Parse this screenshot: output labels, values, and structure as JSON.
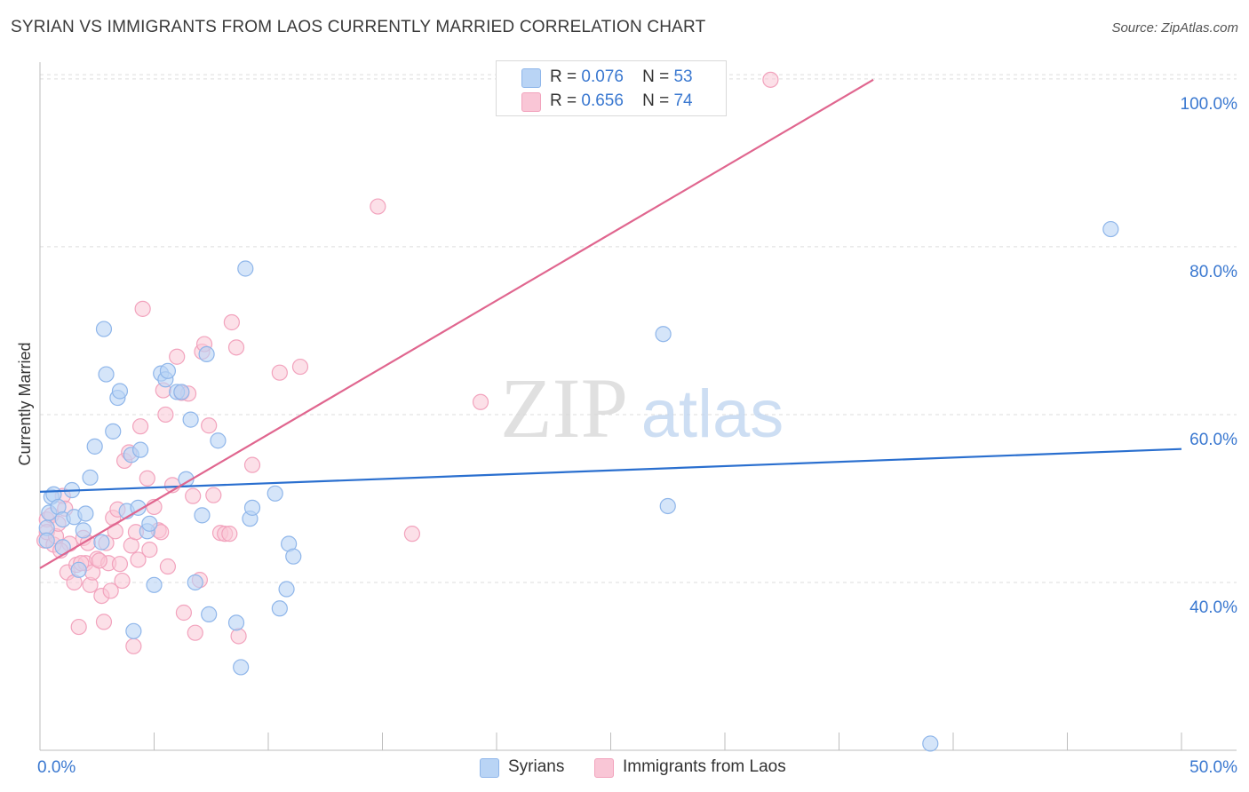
{
  "header": {
    "title": "SYRIAN VS IMMIGRANTS FROM LAOS CURRENTLY MARRIED CORRELATION CHART",
    "source": "Source: ZipAtlas.com"
  },
  "legend": {
    "syrians": {
      "r_label": "R =",
      "r_value": "0.076",
      "n_label": "N =",
      "n_value": "53"
    },
    "laos": {
      "r_label": "R =",
      "r_value": "0.656",
      "n_label": "N =",
      "n_value": "74"
    }
  },
  "bottom_legend": {
    "syrians": "Syrians",
    "laos": "Immigrants from Laos"
  },
  "watermark": {
    "zip": "ZIP",
    "atlas": "atlas"
  },
  "colors": {
    "syrian_fill": "#b9d4f5",
    "syrian_stroke": "#8fb6ea",
    "syrian_line": "#2a6fcf",
    "laos_fill": "#f9c6d6",
    "laos_stroke": "#f2a3bd",
    "laos_line": "#e0668f",
    "axis_text": "#3a78d0",
    "grid": "#dddddd"
  },
  "chart_data": {
    "type": "scatter",
    "title": "SYRIAN VS IMMIGRANTS FROM LAOS CURRENTLY MARRIED CORRELATION CHART",
    "xlabel": "",
    "ylabel": "Currently Married",
    "xlim": [
      0,
      50
    ],
    "ylim": [
      20,
      102
    ],
    "x_tick_labels": [
      {
        "value": 0,
        "label": "0.0%"
      },
      {
        "value": 50,
        "label": "50.0%"
      }
    ],
    "x_tick_marks": [
      0,
      5,
      10,
      15,
      20,
      25,
      30,
      35,
      40,
      45,
      50
    ],
    "y_ticks": [
      {
        "value": 40,
        "label": "40.0%"
      },
      {
        "value": 60,
        "label": "60.0%"
      },
      {
        "value": 80,
        "label": "80.0%"
      },
      {
        "value": 100,
        "label": "100.0%"
      }
    ],
    "series": [
      {
        "name": "Syrians",
        "trend": {
          "x": [
            0,
            50
          ],
          "y": [
            50.8,
            55.9
          ]
        },
        "points": [
          [
            0.3,
            46.5
          ],
          [
            0.3,
            45.0
          ],
          [
            0.4,
            48.3
          ],
          [
            0.5,
            50.2
          ],
          [
            0.6,
            50.5
          ],
          [
            0.8,
            49.0
          ],
          [
            1.0,
            47.5
          ],
          [
            1.0,
            44.2
          ],
          [
            1.4,
            51.0
          ],
          [
            1.5,
            47.8
          ],
          [
            1.7,
            41.5
          ],
          [
            1.9,
            46.2
          ],
          [
            2.0,
            48.2
          ],
          [
            2.2,
            52.5
          ],
          [
            2.4,
            56.2
          ],
          [
            2.7,
            44.8
          ],
          [
            2.8,
            70.2
          ],
          [
            2.9,
            64.8
          ],
          [
            3.2,
            58.0
          ],
          [
            3.4,
            62.0
          ],
          [
            3.5,
            62.8
          ],
          [
            3.8,
            48.5
          ],
          [
            4.0,
            55.2
          ],
          [
            4.1,
            34.2
          ],
          [
            4.3,
            48.9
          ],
          [
            4.4,
            55.8
          ],
          [
            4.7,
            46.1
          ],
          [
            4.8,
            47.0
          ],
          [
            5.0,
            39.7
          ],
          [
            5.3,
            64.9
          ],
          [
            5.5,
            64.2
          ],
          [
            5.6,
            65.2
          ],
          [
            6.0,
            62.7
          ],
          [
            6.2,
            62.7
          ],
          [
            6.4,
            52.3
          ],
          [
            6.6,
            59.4
          ],
          [
            6.8,
            40.0
          ],
          [
            7.1,
            48.0
          ],
          [
            7.3,
            67.2
          ],
          [
            7.4,
            36.2
          ],
          [
            7.8,
            56.9
          ],
          [
            8.6,
            35.2
          ],
          [
            8.8,
            29.9
          ],
          [
            9.0,
            77.4
          ],
          [
            9.2,
            47.6
          ],
          [
            9.3,
            48.9
          ],
          [
            10.3,
            50.6
          ],
          [
            10.5,
            36.9
          ],
          [
            10.8,
            39.2
          ],
          [
            10.9,
            44.6
          ],
          [
            11.1,
            43.1
          ],
          [
            27.3,
            69.6
          ],
          [
            27.5,
            49.1
          ],
          [
            39.0,
            20.8
          ],
          [
            46.9,
            82.1
          ]
        ]
      },
      {
        "name": "Immigrants from Laos",
        "trend": {
          "x": [
            0,
            36.5
          ],
          "y": [
            41.7,
            99.9
          ]
        },
        "points": [
          [
            0.2,
            45.0
          ],
          [
            0.3,
            47.5
          ],
          [
            0.3,
            46.0
          ],
          [
            0.5,
            48.0
          ],
          [
            0.6,
            44.5
          ],
          [
            0.7,
            45.5
          ],
          [
            0.8,
            47.0
          ],
          [
            1.0,
            50.3
          ],
          [
            1.1,
            48.8
          ],
          [
            1.2,
            41.2
          ],
          [
            1.3,
            44.6
          ],
          [
            1.5,
            40.0
          ],
          [
            1.6,
            42.1
          ],
          [
            1.7,
            34.7
          ],
          [
            1.9,
            45.3
          ],
          [
            2.0,
            42.3
          ],
          [
            2.1,
            44.7
          ],
          [
            2.2,
            39.7
          ],
          [
            2.3,
            41.2
          ],
          [
            2.5,
            42.8
          ],
          [
            2.7,
            38.4
          ],
          [
            2.8,
            35.3
          ],
          [
            3.0,
            42.3
          ],
          [
            3.1,
            39.0
          ],
          [
            3.2,
            47.7
          ],
          [
            3.3,
            46.1
          ],
          [
            3.4,
            48.7
          ],
          [
            3.6,
            40.2
          ],
          [
            3.7,
            54.5
          ],
          [
            3.9,
            55.5
          ],
          [
            4.0,
            44.4
          ],
          [
            4.1,
            32.4
          ],
          [
            4.3,
            42.7
          ],
          [
            4.4,
            58.6
          ],
          [
            4.5,
            72.6
          ],
          [
            4.7,
            52.4
          ],
          [
            4.8,
            43.9
          ],
          [
            5.0,
            49.0
          ],
          [
            5.2,
            46.2
          ],
          [
            5.4,
            62.9
          ],
          [
            5.5,
            60.0
          ],
          [
            5.6,
            41.9
          ],
          [
            5.8,
            51.6
          ],
          [
            6.0,
            66.9
          ],
          [
            6.2,
            62.6
          ],
          [
            6.3,
            36.4
          ],
          [
            6.5,
            62.5
          ],
          [
            6.7,
            50.3
          ],
          [
            6.8,
            34.0
          ],
          [
            7.0,
            40.3
          ],
          [
            7.1,
            67.5
          ],
          [
            7.2,
            68.4
          ],
          [
            7.4,
            58.7
          ],
          [
            7.9,
            45.9
          ],
          [
            8.1,
            45.8
          ],
          [
            8.4,
            71.0
          ],
          [
            8.6,
            68.0
          ],
          [
            8.7,
            33.6
          ],
          [
            9.3,
            54.0
          ],
          [
            10.5,
            65.0
          ],
          [
            11.4,
            65.7
          ],
          [
            14.8,
            84.8
          ],
          [
            16.3,
            45.8
          ],
          [
            19.3,
            61.5
          ],
          [
            32.0,
            99.9
          ],
          [
            2.6,
            42.6
          ],
          [
            1.8,
            42.3
          ],
          [
            0.9,
            43.8
          ],
          [
            2.9,
            44.7
          ],
          [
            4.2,
            46.0
          ],
          [
            3.5,
            42.2
          ],
          [
            5.3,
            46.0
          ],
          [
            7.6,
            50.4
          ],
          [
            8.3,
            45.8
          ]
        ]
      }
    ]
  }
}
